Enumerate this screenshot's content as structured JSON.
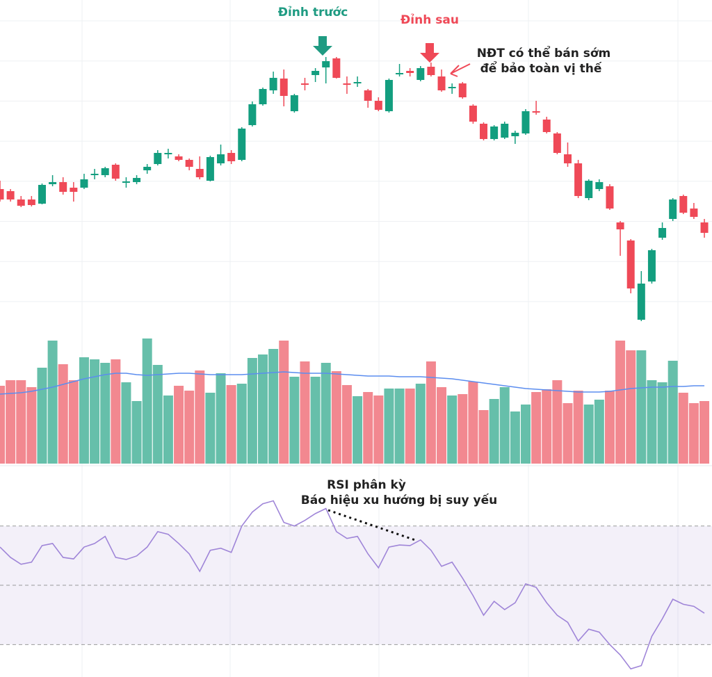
{
  "chart_data": [
    {
      "type": "candlestick",
      "ylim": [
        0,
        480
      ],
      "up_color": "#139e7f",
      "down_color": "#ef4957",
      "annotations": [
        "Đỉnh trước",
        "Đỉnh sau",
        "NĐT có thể bán sớm",
        "để bảo toàn vị thế"
      ],
      "open": [
        208,
        205,
        193,
        193,
        187,
        215,
        218,
        210,
        210,
        228,
        228,
        243,
        218,
        218,
        235,
        244,
        258,
        255,
        250,
        237,
        220,
        245,
        260,
        250,
        300,
        330,
        350,
        367,
        320,
        360,
        372,
        383,
        396,
        360,
        362,
        350,
        335,
        320,
        375,
        378,
        365,
        384,
        370,
        353,
        360,
        328,
        302,
        280,
        282,
        284,
        288,
        320,
        308,
        288,
        258,
        245,
        195,
        208,
        212,
        160,
        134,
        20,
        75,
        138,
        165,
        198,
        180,
        160
      ],
      "high": [
        220,
        208,
        198,
        198,
        216,
        228,
        225,
        218,
        230,
        237,
        240,
        245,
        225,
        228,
        244,
        264,
        266,
        258,
        252,
        255,
        256,
        272,
        264,
        297,
        334,
        354,
        377,
        380,
        345,
        368,
        382,
        398,
        398,
        370,
        370,
        352,
        340,
        367,
        388,
        382,
        385,
        390,
        380,
        360,
        362,
        330,
        304,
        300,
        305,
        292,
        323,
        335,
        312,
        290,
        275,
        250,
        222,
        222,
        215,
        162,
        136,
        90,
        122,
        160,
        195,
        200,
        188,
        165
      ],
      "low": [
        190,
        190,
        182,
        183,
        186,
        212,
        200,
        190,
        208,
        222,
        225,
        220,
        210,
        215,
        230,
        242,
        252,
        248,
        235,
        222,
        219,
        242,
        244,
        248,
        298,
        328,
        345,
        327,
        318,
        350,
        362,
        360,
        367,
        345,
        355,
        325,
        320,
        318,
        370,
        370,
        363,
        370,
        348,
        345,
        338,
        302,
        278,
        278,
        280,
        273,
        286,
        315,
        288,
        258,
        240,
        195,
        192,
        205,
        178,
        112,
        58,
        18,
        72,
        135,
        162,
        172,
        165,
        138
      ],
      "close": [
        193,
        193,
        184,
        185,
        214,
        218,
        204,
        204,
        222,
        230,
        238,
        223,
        219,
        224,
        240,
        260,
        260,
        250,
        240,
        225,
        254,
        258,
        248,
        295,
        330,
        352,
        368,
        342,
        343,
        358,
        378,
        392,
        368,
        359,
        362,
        335,
        322,
        365,
        375,
        375,
        382,
        372,
        350,
        355,
        340,
        305,
        280,
        298,
        302,
        289,
        320,
        318,
        290,
        260,
        245,
        198,
        220,
        218,
        180,
        150,
        65,
        72,
        120,
        152,
        193,
        174,
        168,
        145
      ]
    },
    {
      "type": "bar",
      "ylim": [
        0,
        180
      ],
      "up_color": "#66bfaa",
      "down_color": "#f28890",
      "ma_color": "#5b8def",
      "values": [
        112,
        120,
        120,
        110,
        138,
        177,
        143,
        120,
        153,
        150,
        145,
        150,
        117,
        90,
        180,
        142,
        98,
        112,
        105,
        134,
        102,
        130,
        113,
        115,
        152,
        157,
        165,
        177,
        125,
        147,
        125,
        145,
        133,
        113,
        97,
        103,
        98,
        108,
        108,
        108,
        115,
        147,
        110,
        98,
        100,
        118,
        77,
        93,
        110,
        75,
        85,
        103,
        107,
        120,
        87,
        105,
        85,
        92,
        105,
        177,
        163,
        163,
        120,
        117,
        148,
        102,
        87,
        90
      ],
      "ma": [
        100,
        101,
        102,
        104,
        107,
        110,
        114,
        118,
        122,
        125,
        128,
        130,
        130,
        128,
        127,
        128,
        129,
        130,
        130,
        129,
        128,
        128,
        128,
        128,
        129,
        130,
        131,
        132,
        131,
        130,
        130,
        130,
        129,
        128,
        127,
        126,
        126,
        126,
        125,
        125,
        125,
        124,
        123,
        122,
        120,
        118,
        116,
        114,
        112,
        110,
        108,
        107,
        106,
        105,
        104,
        103,
        103,
        103,
        104,
        106,
        108,
        109,
        110,
        110,
        111,
        111,
        112,
        112
      ]
    },
    {
      "type": "line",
      "ylim": [
        20,
        88
      ],
      "color": "#9f85d8",
      "levels": [
        70,
        50,
        30
      ],
      "annotations": [
        "RSI phân kỳ",
        "Báo hiệu xu hướng bị suy yếu"
      ],
      "values": [
        62.9,
        59.4,
        57.1,
        57.8,
        63.4,
        64.1,
        59.4,
        58.9,
        62.9,
        64.1,
        66.5,
        59.4,
        58.7,
        59.9,
        62.9,
        68.1,
        67.2,
        64.1,
        60.6,
        54.7,
        61.8,
        62.5,
        61.1,
        70,
        74.7,
        77.5,
        78.5,
        71.2,
        70,
        71.9,
        74.2,
        75.9,
        68.1,
        65.8,
        66.5,
        60.6,
        55.9,
        62.9,
        63.6,
        63.4,
        65.3,
        61.8,
        56.4,
        57.8,
        52.4,
        46.5,
        39.9,
        44.6,
        41.8,
        44.1,
        50.5,
        49.3,
        44.1,
        39.9,
        37.5,
        31.2,
        35.2,
        34.2,
        30,
        26.5,
        21.8,
        22.9,
        32.8,
        38.7,
        45.3,
        43.6,
        42.9,
        40.6
      ]
    }
  ]
}
